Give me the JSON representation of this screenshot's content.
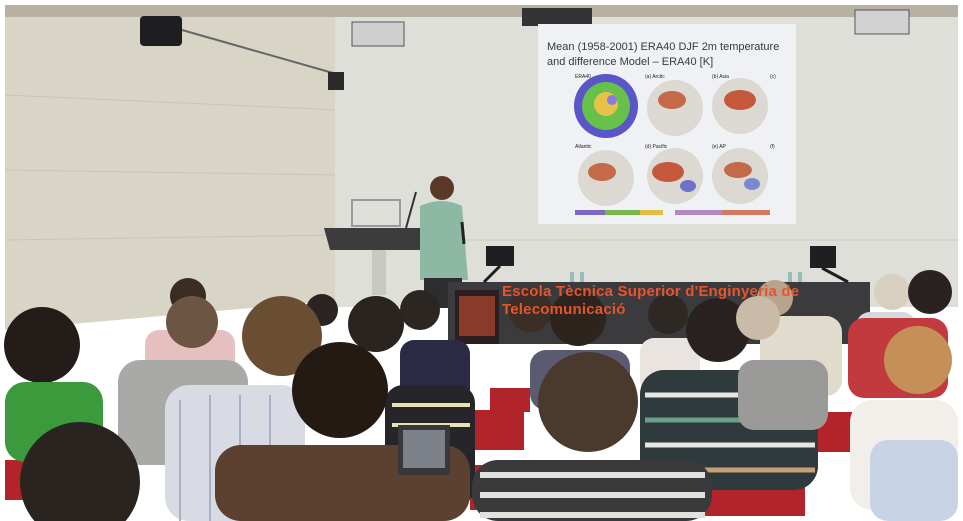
{
  "slide": {
    "title": "Mean (1958-2001) ERA40 DJF 2m temperature and difference Model – ERA40 [K]",
    "map_labels": [
      "ERA40",
      "(a) Arctic",
      "(b) Asia",
      "(c)",
      "Atlantic",
      "(d) Pacific",
      "(e) AP",
      "(f)"
    ]
  },
  "banner": {
    "text": "Escola Tècnica Superior d'Enginyeria de Telecomunicació"
  },
  "colors": {
    "wall": "#dcdcd2",
    "screen": "#f0f1f4",
    "banner": "#3b3a3d",
    "banner_text": "#e8542c",
    "chairs": "#b3242a"
  }
}
